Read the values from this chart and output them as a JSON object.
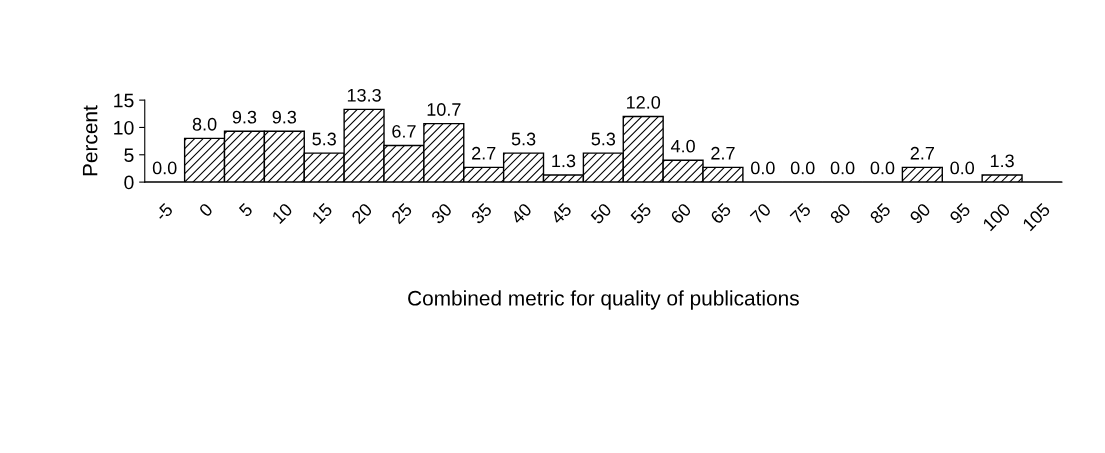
{
  "chart_data": {
    "type": "bar",
    "categories": [
      "-5",
      "0",
      "5",
      "10",
      "15",
      "20",
      "25",
      "30",
      "35",
      "40",
      "45",
      "50",
      "55",
      "60",
      "65",
      "70",
      "75",
      "80",
      "85",
      "90",
      "95",
      "100",
      "105"
    ],
    "values": [
      0.0,
      8.0,
      9.3,
      9.3,
      5.3,
      13.3,
      6.7,
      10.7,
      2.7,
      5.3,
      1.3,
      5.3,
      12.0,
      4.0,
      2.7,
      0.0,
      0.0,
      0.0,
      0.0,
      2.7,
      0.0,
      1.3,
      null
    ],
    "value_labels": [
      "0.0",
      "8.0",
      "9.3",
      "9.3",
      "5.3",
      "13.3",
      "6.7",
      "10.7",
      "2.7",
      "5.3",
      "1.3",
      "5.3",
      "12.0",
      "4.0",
      "2.7",
      "0.0",
      "0.0",
      "0.0",
      "0.0",
      "2.7",
      "0.0",
      "1.3",
      null
    ],
    "color": "#000000",
    "xlabel": "Combined metric for quality of publications",
    "ylabel": "Percent",
    "ylim": [
      0,
      15
    ],
    "yticks": [
      0,
      5,
      10,
      15
    ],
    "grid": false,
    "legend": false
  }
}
